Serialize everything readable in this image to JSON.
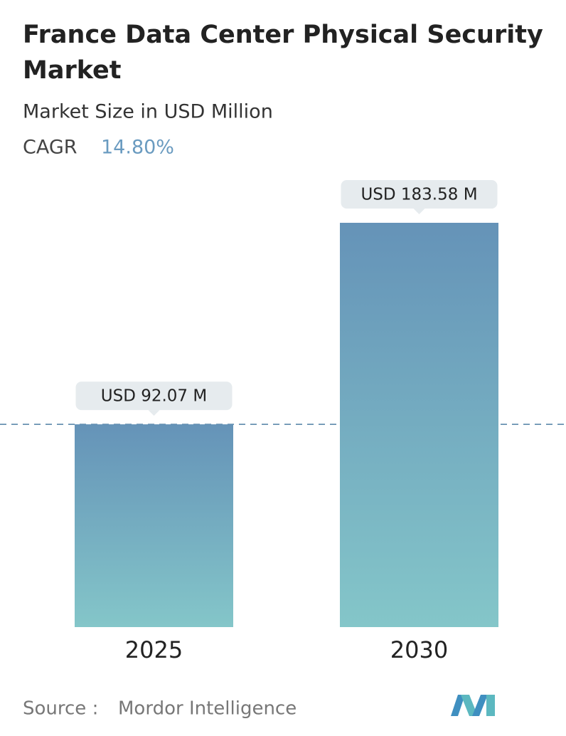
{
  "chart_data": {
    "type": "bar",
    "title": "France Data Center Physical Security",
    "title_line2": "Market",
    "subtitle": "Market Size in USD Million",
    "cagr_label": "CAGR",
    "cagr": {
      "value": 14.8,
      "label": "14.80%"
    },
    "categories": [
      "2025",
      "2030"
    ],
    "values": [
      92.07,
      183.58
    ],
    "value_labels": [
      "USD 92.07 M",
      "USD 183.58 M"
    ],
    "color": [
      "#6593b8",
      "#84c6c9"
    ],
    "source_label": "Source :",
    "source": "Mordor Intelligence"
  }
}
